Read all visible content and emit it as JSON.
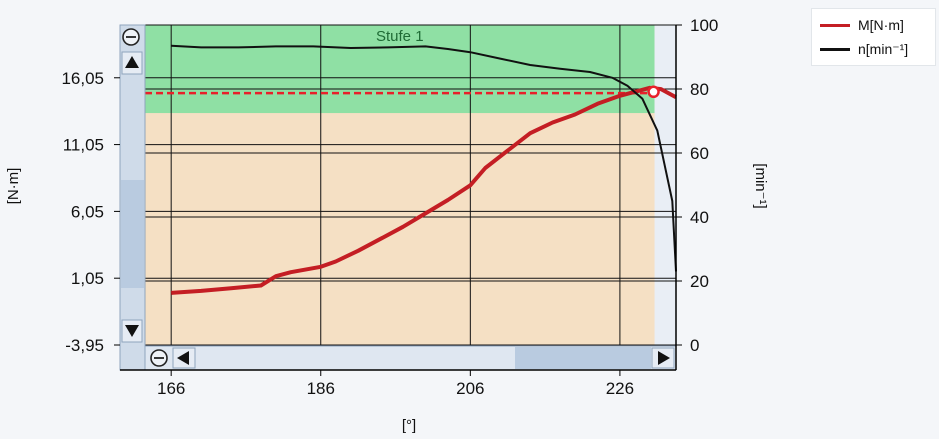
{
  "chart_data": {
    "type": "line",
    "xlabel": "[°]",
    "ylabel_left": "[N·m]",
    "ylabel_right": "[min⁻¹]",
    "xlim": [
      162.5,
      233.5
    ],
    "ylim_left": [
      -3.95,
      20.0
    ],
    "ylim_right": [
      0,
      100
    ],
    "x_ticks": [
      166,
      186,
      206,
      226
    ],
    "x_tick_labels": [
      "166",
      "186",
      "206",
      "226"
    ],
    "y_left_ticks": [
      16.05,
      11.05,
      6.05,
      1.05,
      -3.95
    ],
    "y_left_tick_labels": [
      "16,05",
      "11,05",
      "6,05",
      "1,05",
      "-3,95"
    ],
    "y_right_ticks": [
      100,
      80,
      60,
      40,
      20,
      0
    ],
    "y_right_tick_labels": [
      "100",
      "80",
      "60",
      "40",
      "20",
      "0"
    ],
    "grid": true,
    "legend_position": "top-right",
    "zones": [
      {
        "label": "Stufe 1",
        "y_from": 13.4,
        "y_to": 20.0,
        "color": "#8fe0a4"
      },
      {
        "label": "",
        "y_from": -3.95,
        "y_to": 13.4,
        "color": "#f5e0c4"
      }
    ],
    "threshold": {
      "y": 14.9,
      "color": "#e8202a"
    },
    "marker": {
      "x": 230.5,
      "y": 15.0
    },
    "series": [
      {
        "name": "M[N·m]",
        "color": "#c41e24",
        "x": [
          166,
          170,
          174,
          178,
          180,
          182,
          186,
          188,
          191,
          194,
          197,
          200,
          203,
          206,
          208,
          211,
          214,
          217,
          220,
          223,
          226,
          228,
          230,
          231.5,
          233.5
        ],
        "values": [
          -0.05,
          0.1,
          0.3,
          0.5,
          1.2,
          1.5,
          1.9,
          2.3,
          3.1,
          4.0,
          4.9,
          5.9,
          6.9,
          8.0,
          9.3,
          10.6,
          11.9,
          12.7,
          13.3,
          14.1,
          14.7,
          15.0,
          15.3,
          15.2,
          14.6
        ]
      },
      {
        "name": "n[min⁻¹]",
        "color": "#111111",
        "x": [
          166,
          170,
          175,
          180,
          185,
          190,
          195,
          200,
          203,
          206,
          210,
          214,
          218,
          222,
          225,
          227,
          229,
          231,
          232,
          233,
          233.5
        ],
        "values": [
          93.5,
          93.0,
          93.0,
          93.3,
          93.3,
          92.8,
          93.0,
          93.3,
          92.5,
          91.5,
          89.5,
          87.5,
          86.3,
          85.3,
          83.5,
          81.0,
          77.0,
          67.0,
          56.0,
          45.0,
          23.0
        ]
      }
    ]
  }
}
